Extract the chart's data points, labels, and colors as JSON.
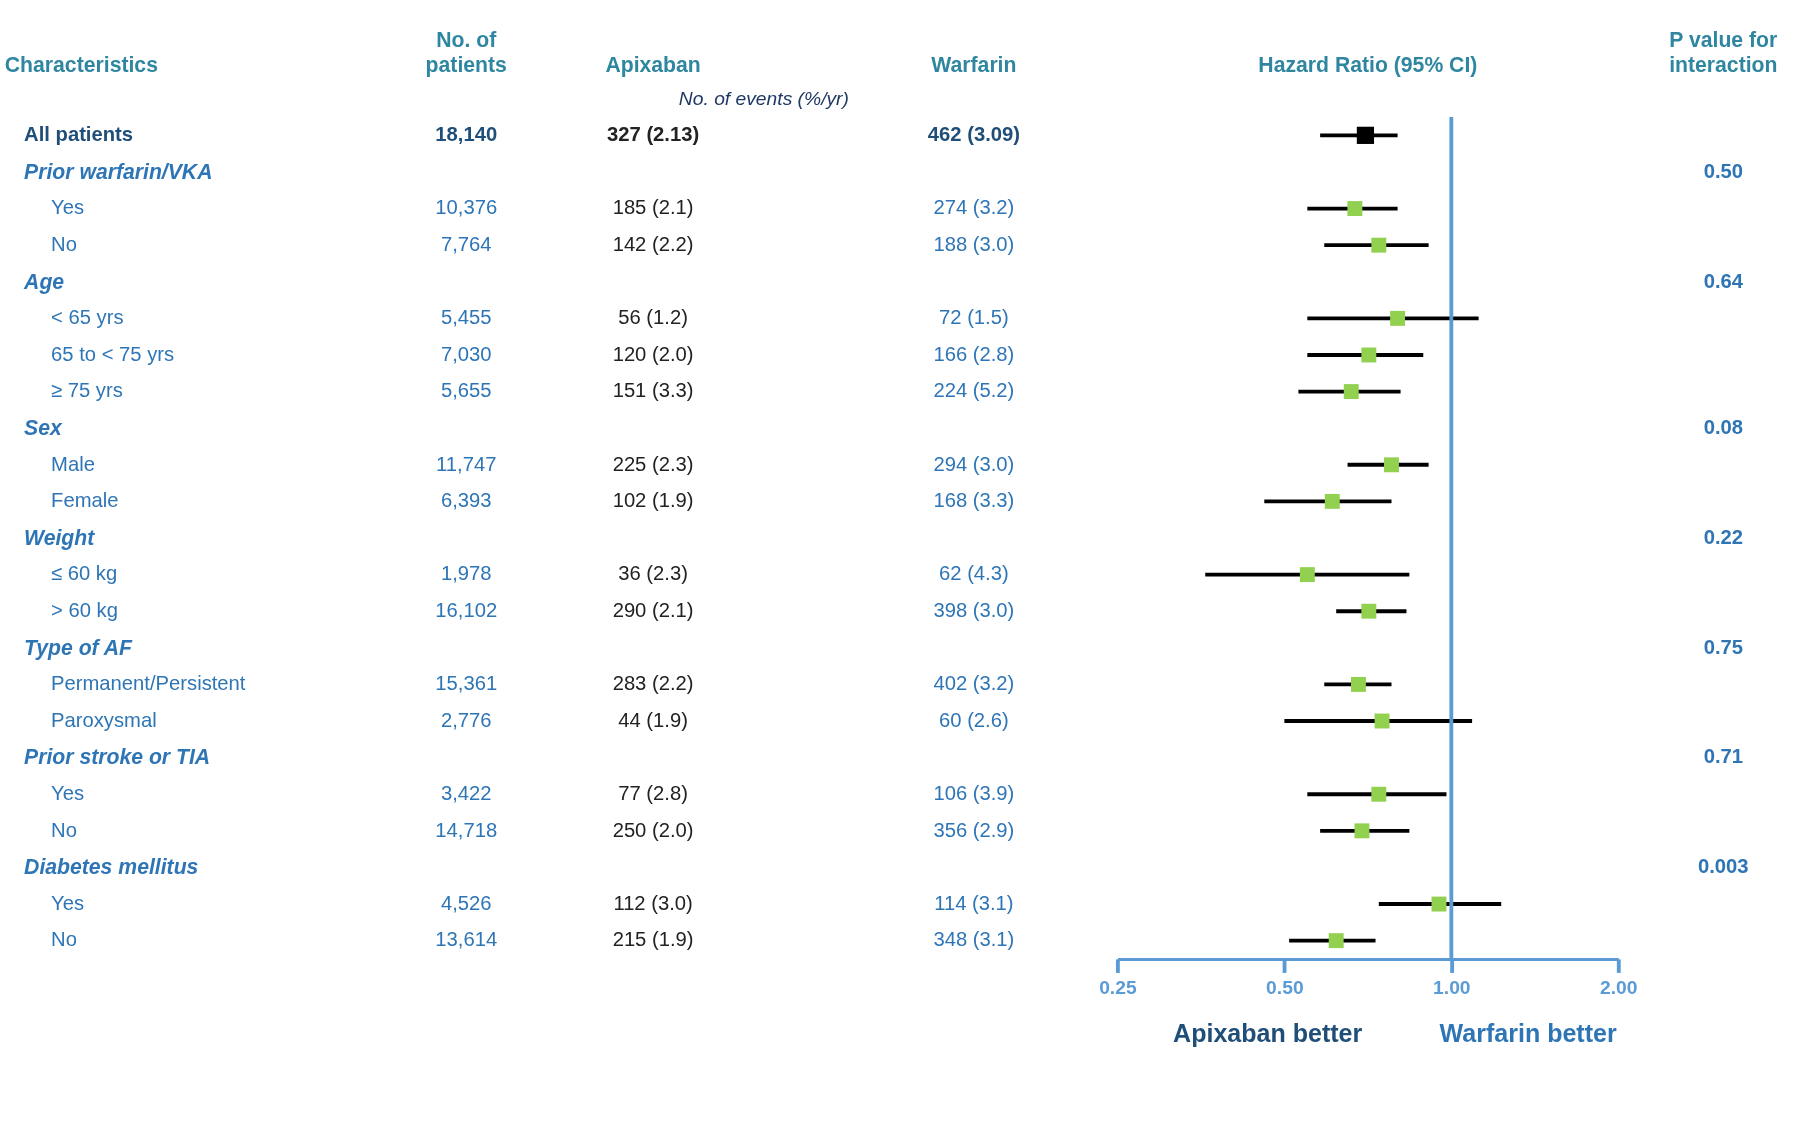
{
  "chart_data": [
    {
      "type": "other",
      "title": "Characteristics",
      "categories": [
        "All patients",
        "Prior warfarin/VKA",
        "Yes",
        "No",
        "Age",
        "< 65 yrs",
        "65 to < 75 yrs",
        "≥ 75 yrs",
        "Sex",
        "Male",
        "Female",
        "Weight",
        "≤ 60 kg",
        "> 60 kg",
        "Type of AF",
        "Permanent/Persistent",
        "Paroxysmal",
        "Prior stroke or TIA",
        "Yes",
        "No",
        "Diabetes mellitus",
        "Yes",
        "No"
      ]
    },
    {
      "type": "other",
      "title": "No. of\npatients",
      "categories": [
        "18,140",
        null,
        "10,376",
        "7,764",
        null,
        "5,455",
        "7,030",
        "5,655",
        null,
        "11,747",
        "6,393",
        null,
        "1,978",
        "16,102",
        null,
        "15,361",
        "2,776",
        null,
        "3,422",
        "14,718",
        null,
        "4,526",
        "13,614"
      ]
    },
    {
      "type": "other",
      "title": "Apixaban",
      "annotations": [
        "No. of events (%/yr)"
      ],
      "categories": [
        "327 (2.13)",
        null,
        "185 (2.1)",
        "142 (2.2)",
        null,
        "56 (1.2)",
        "120 (2.0)",
        "151 (3.3)",
        null,
        "225 (2.3)",
        "102 (1.9)",
        null,
        "36 (2.3)",
        "290 (2.1)",
        null,
        "283 (2.2)",
        "44 (1.9)",
        null,
        "77 (2.8)",
        "250 (2.0)",
        null,
        "112 (3.0)",
        "215 (1.9)"
      ]
    },
    {
      "type": "other",
      "title": "Warfarin",
      "categories": [
        "462 (3.09)",
        null,
        "274 (3.2)",
        "188 (3.0)",
        null,
        "72 (1.5)",
        "166 (2.8)",
        "224 (5.2)",
        null,
        "294 (3.0)",
        "168 (3.3)",
        null,
        "62 (4.3)",
        "398 (3.0)",
        null,
        "402 (3.2)",
        "60 (2.6)",
        null,
        "106 (3.9)",
        "356 (2.9)",
        null,
        "114 (3.1)",
        "348 (3.1)"
      ]
    },
    {
      "type": "scatter",
      "orientation": "horizontal",
      "title": "Hazard Ratio (95% CI)",
      "log": "x",
      "marker": "square",
      "grid": false,
      "categories": [
        null,
        null,
        null,
        null,
        null,
        null,
        null,
        null,
        null,
        null,
        null,
        null,
        null,
        null,
        null,
        null,
        null,
        null,
        null,
        null,
        null,
        null,
        null
      ],
      "values": [
        0.7,
        null,
        0.67,
        0.74,
        null,
        0.8,
        0.71,
        0.66,
        null,
        0.78,
        0.61,
        null,
        0.55,
        0.71,
        null,
        0.68,
        0.75,
        null,
        0.74,
        0.69,
        null,
        0.95,
        0.62
      ],
      "errors": [
        [
          0.58,
          0.8
        ],
        null,
        [
          0.55,
          0.8
        ],
        [
          0.59,
          0.91
        ],
        null,
        [
          0.55,
          1.12
        ],
        [
          0.55,
          0.89
        ],
        [
          0.53,
          0.81
        ],
        null,
        [
          0.65,
          0.91
        ],
        [
          0.46,
          0.78
        ],
        null,
        [
          0.36,
          0.84
        ],
        [
          0.62,
          0.83
        ],
        null,
        [
          0.59,
          0.78
        ],
        [
          0.5,
          1.09
        ],
        null,
        [
          0.55,
          0.98
        ],
        [
          0.58,
          0.84
        ],
        null,
        [
          0.74,
          1.23
        ],
        [
          0.51,
          0.73
        ]
      ],
      "colors": [
        "#000000",
        null,
        "#92d050",
        "#92d050",
        null,
        "#92d050",
        "#92d050",
        "#92d050",
        null,
        "#92d050",
        "#92d050",
        null,
        "#92d050",
        "#92d050",
        null,
        "#92d050",
        "#92d050",
        null,
        "#92d050",
        "#92d050",
        null,
        "#92d050",
        "#92d050"
      ],
      "xlim": [
        0.25,
        2.0
      ],
      "xticks": [
        {
          "value": 0.25,
          "label": "0.25"
        },
        {
          "value": 0.5,
          "label": "0.50"
        },
        {
          "value": 1,
          "label": "1.00"
        },
        {
          "value": 2,
          "label": "2.00"
        }
      ],
      "ref_lines": [
        {
          "axis": "x",
          "value": 1,
          "color": "#5b9bd5"
        }
      ],
      "annotations": [
        "Apixaban better",
        "Warfarin better"
      ]
    },
    {
      "type": "other",
      "title": "P value for\ninteraction",
      "categories": [
        null,
        "0.50",
        null,
        null,
        "0.64",
        null,
        null,
        null,
        "0.08",
        null,
        null,
        "0.22",
        null,
        null,
        "0.75",
        null,
        null,
        "0.71",
        null,
        null,
        "0.003",
        null,
        null
      ]
    }
  ]
}
